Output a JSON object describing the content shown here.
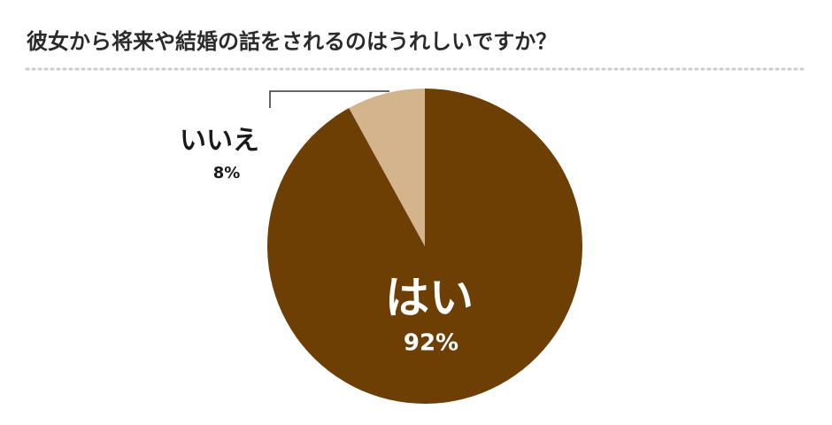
{
  "chart_data": {
    "type": "pie",
    "title": "彼女から将来や結婚の話をされるのはうれしいですか？",
    "categories": [
      "はい",
      "いいえ"
    ],
    "values": [
      92,
      8
    ],
    "value_labels": [
      "92%",
      "8%"
    ],
    "colors": [
      "#6e3f05",
      "#d4b48c"
    ]
  }
}
